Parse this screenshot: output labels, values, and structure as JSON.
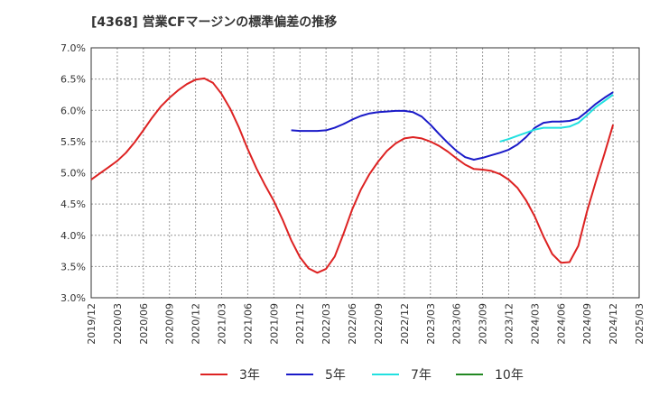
{
  "chart_data": {
    "type": "line",
    "title": "[4368]  営業CFマージンの標準偏差の推移",
    "xlabel": "",
    "ylabel": "",
    "ylim": [
      3.0,
      7.0
    ],
    "yticks": [
      "7.0%",
      "6.5%",
      "6.0%",
      "5.5%",
      "5.0%",
      "4.5%",
      "4.0%",
      "3.5%",
      "3.0%"
    ],
    "xticks": [
      "2019/12",
      "2020/03",
      "2020/06",
      "2020/09",
      "2020/12",
      "2021/03",
      "2021/06",
      "2021/09",
      "2021/12",
      "2022/03",
      "2022/06",
      "2022/09",
      "2022/12",
      "2023/03",
      "2023/06",
      "2023/09",
      "2023/12",
      "2024/03",
      "2024/06",
      "2024/09",
      "2024/12",
      "2025/03"
    ],
    "grid": true,
    "legend_position": "bottom",
    "series": [
      {
        "name": "3年",
        "color": "#dd2222",
        "points": [
          [
            "2019/12",
            4.89
          ],
          [
            "2020/01",
            4.99
          ],
          [
            "2020/02",
            5.09
          ],
          [
            "2020/03",
            5.19
          ],
          [
            "2020/04",
            5.32
          ],
          [
            "2020/05",
            5.49
          ],
          [
            "2020/06",
            5.68
          ],
          [
            "2020/07",
            5.88
          ],
          [
            "2020/08",
            6.06
          ],
          [
            "2020/09",
            6.2
          ],
          [
            "2020/10",
            6.32
          ],
          [
            "2020/11",
            6.42
          ],
          [
            "2020/12",
            6.49
          ],
          [
            "2021/01",
            6.51
          ],
          [
            "2021/02",
            6.44
          ],
          [
            "2021/03",
            6.26
          ],
          [
            "2021/04",
            6.02
          ],
          [
            "2021/05",
            5.72
          ],
          [
            "2021/06",
            5.38
          ],
          [
            "2021/07",
            5.07
          ],
          [
            "2021/08",
            4.8
          ],
          [
            "2021/09",
            4.55
          ],
          [
            "2021/10",
            4.25
          ],
          [
            "2021/11",
            3.92
          ],
          [
            "2021/12",
            3.65
          ],
          [
            "2022/01",
            3.47
          ],
          [
            "2022/02",
            3.4
          ],
          [
            "2022/03",
            3.46
          ],
          [
            "2022/04",
            3.66
          ],
          [
            "2022/05",
            4.02
          ],
          [
            "2022/06",
            4.41
          ],
          [
            "2022/07",
            4.73
          ],
          [
            "2022/08",
            4.98
          ],
          [
            "2022/09",
            5.18
          ],
          [
            "2022/10",
            5.35
          ],
          [
            "2022/11",
            5.47
          ],
          [
            "2022/12",
            5.55
          ],
          [
            "2023/01",
            5.57
          ],
          [
            "2023/02",
            5.55
          ],
          [
            "2023/03",
            5.5
          ],
          [
            "2023/04",
            5.43
          ],
          [
            "2023/05",
            5.34
          ],
          [
            "2023/06",
            5.23
          ],
          [
            "2023/07",
            5.13
          ],
          [
            "2023/08",
            5.06
          ],
          [
            "2023/09",
            5.05
          ],
          [
            "2023/10",
            5.03
          ],
          [
            "2023/11",
            4.98
          ],
          [
            "2023/12",
            4.89
          ],
          [
            "2024/01",
            4.76
          ],
          [
            "2024/02",
            4.56
          ],
          [
            "2024/03",
            4.3
          ],
          [
            "2024/04",
            3.98
          ],
          [
            "2024/05",
            3.7
          ],
          [
            "2024/06",
            3.56
          ],
          [
            "2024/07",
            3.57
          ],
          [
            "2024/08",
            3.83
          ],
          [
            "2024/09",
            4.38
          ],
          [
            "2024/10",
            4.85
          ],
          [
            "2024/11",
            5.3
          ],
          [
            "2024/12",
            5.77
          ]
        ]
      },
      {
        "name": "5年",
        "color": "#1a1ac8",
        "points": [
          [
            "2021/11",
            5.68
          ],
          [
            "2021/12",
            5.67
          ],
          [
            "2022/01",
            5.67
          ],
          [
            "2022/02",
            5.67
          ],
          [
            "2022/03",
            5.68
          ],
          [
            "2022/04",
            5.72
          ],
          [
            "2022/05",
            5.78
          ],
          [
            "2022/06",
            5.85
          ],
          [
            "2022/07",
            5.91
          ],
          [
            "2022/08",
            5.95
          ],
          [
            "2022/09",
            5.97
          ],
          [
            "2022/10",
            5.98
          ],
          [
            "2022/11",
            5.99
          ],
          [
            "2022/12",
            5.99
          ],
          [
            "2023/01",
            5.97
          ],
          [
            "2023/02",
            5.9
          ],
          [
            "2023/03",
            5.77
          ],
          [
            "2023/04",
            5.62
          ],
          [
            "2023/05",
            5.48
          ],
          [
            "2023/06",
            5.35
          ],
          [
            "2023/07",
            5.25
          ],
          [
            "2023/08",
            5.21
          ],
          [
            "2023/09",
            5.24
          ],
          [
            "2023/10",
            5.28
          ],
          [
            "2023/11",
            5.32
          ],
          [
            "2023/12",
            5.37
          ],
          [
            "2024/01",
            5.45
          ],
          [
            "2024/02",
            5.57
          ],
          [
            "2024/03",
            5.72
          ],
          [
            "2024/04",
            5.8
          ],
          [
            "2024/05",
            5.82
          ],
          [
            "2024/06",
            5.82
          ],
          [
            "2024/07",
            5.83
          ],
          [
            "2024/08",
            5.87
          ],
          [
            "2024/09",
            5.98
          ],
          [
            "2024/10",
            6.1
          ],
          [
            "2024/11",
            6.2
          ],
          [
            "2024/12",
            6.29
          ]
        ]
      },
      {
        "name": "7年",
        "color": "#22e0e0",
        "points": [
          [
            "2023/11",
            5.5
          ],
          [
            "2023/12",
            5.54
          ],
          [
            "2024/01",
            5.59
          ],
          [
            "2024/02",
            5.64
          ],
          [
            "2024/03",
            5.69
          ],
          [
            "2024/04",
            5.72
          ],
          [
            "2024/05",
            5.72
          ],
          [
            "2024/06",
            5.72
          ],
          [
            "2024/07",
            5.74
          ],
          [
            "2024/08",
            5.8
          ],
          [
            "2024/09",
            5.92
          ],
          [
            "2024/10",
            6.05
          ],
          [
            "2024/11",
            6.15
          ],
          [
            "2024/12",
            6.25
          ]
        ]
      },
      {
        "name": "10年",
        "color": "#228822",
        "points": []
      }
    ]
  }
}
